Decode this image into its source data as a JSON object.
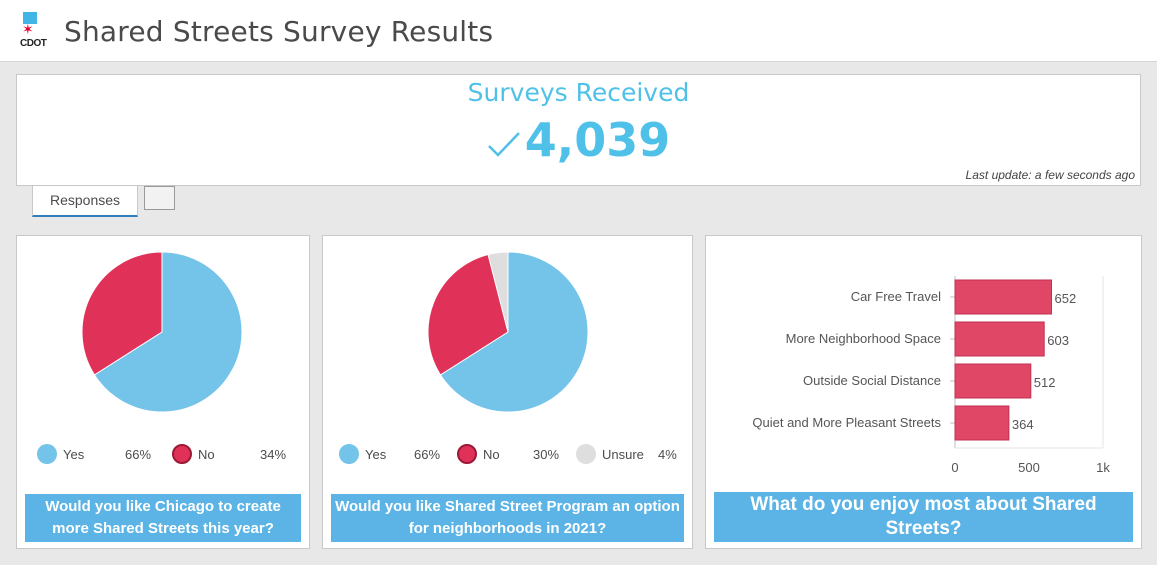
{
  "header": {
    "logo_text": "CDOT",
    "title": "Shared Streets Survey Results"
  },
  "surveys": {
    "label": "Surveys Received",
    "count": "4,039",
    "last_update": "Last update: a few seconds ago",
    "icon": "check-icon"
  },
  "tabs": [
    {
      "label": "Responses"
    },
    {
      "label": ""
    }
  ],
  "colors": {
    "yes": "#74c3e9",
    "no": "#e03158",
    "unsure": "#dedede",
    "accent": "#4fc1e9",
    "question_bg": "#5bb4e5"
  },
  "charts": {
    "chart1": {
      "question": "Would you like Chicago to create more Shared Streets this year?",
      "legend": [
        {
          "label": "Yes",
          "percent": "66%"
        },
        {
          "label": "No",
          "percent": "34%"
        }
      ]
    },
    "chart2": {
      "question": "Would you like Shared Street Program an option for neighborhoods in 2021?",
      "legend": [
        {
          "label": "Yes",
          "percent": "66%"
        },
        {
          "label": "No",
          "percent": "30%"
        },
        {
          "label": "Unsure",
          "percent": "4%"
        }
      ]
    },
    "chart3": {
      "question": "What do you enjoy most about Shared Streets?"
    }
  },
  "chart_data": [
    {
      "type": "pie",
      "categories": [
        "Yes",
        "No"
      ],
      "values": [
        66,
        34
      ],
      "colors": [
        "#74c3e9",
        "#e03158"
      ]
    },
    {
      "type": "pie",
      "categories": [
        "Yes",
        "No",
        "Unsure"
      ],
      "values": [
        66,
        30,
        4
      ],
      "colors": [
        "#74c3e9",
        "#e03158",
        "#dedede"
      ]
    },
    {
      "type": "bar",
      "orientation": "horizontal",
      "categories": [
        "Car Free Travel",
        "More Neighborhood Space",
        "Outside Social Distance",
        "Quiet and More Pleasant Streets"
      ],
      "values": [
        652,
        603,
        512,
        364
      ],
      "xlim": [
        0,
        1000
      ],
      "ticks": [
        0,
        500,
        1000
      ],
      "tick_labels": [
        "0",
        "500",
        "1k"
      ],
      "grid": false,
      "color": "#e04767"
    }
  ]
}
